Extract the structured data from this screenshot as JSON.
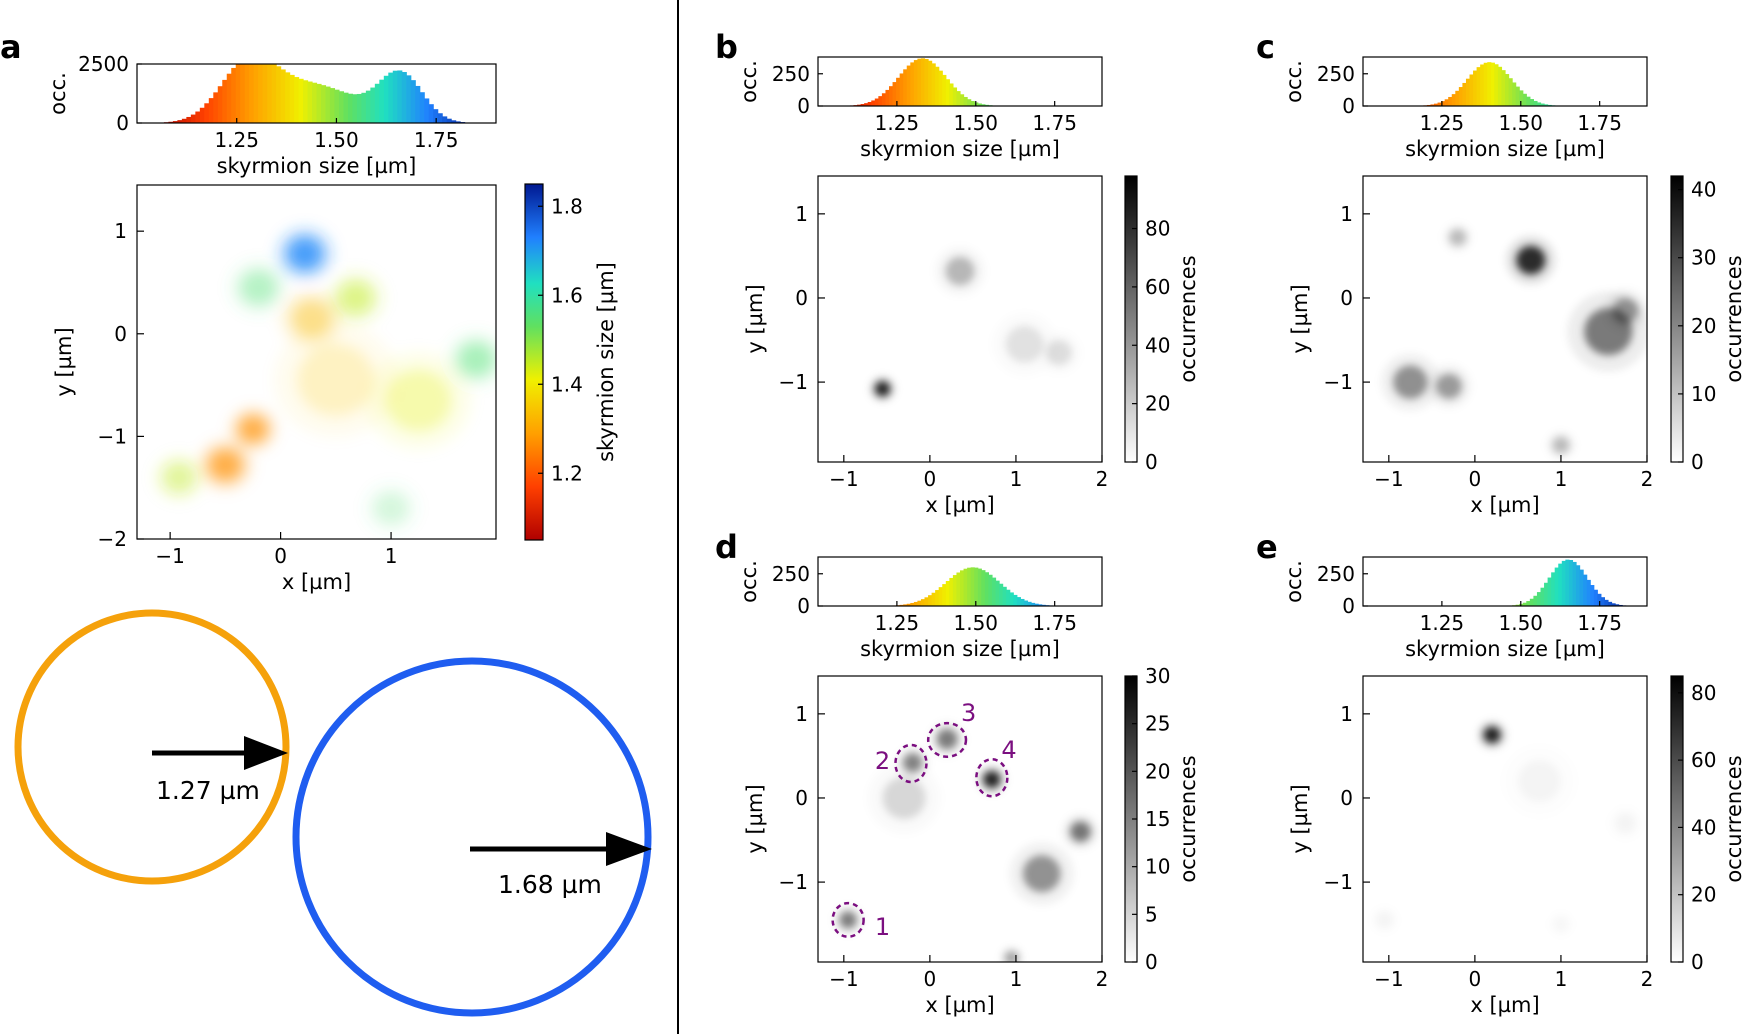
{
  "colors": {
    "orange_circle": "#f5a10b",
    "blue_circle": "#1f5df0",
    "arrow": "#000000",
    "annotation": "#7b0f80",
    "axis": "#000000"
  },
  "circles": {
    "small_label": "1.27 µm",
    "small_value_um": 1.27,
    "large_label": "1.68 µm",
    "large_value_um": 1.68
  },
  "chart_data": [
    {
      "panel": "a",
      "type": "heatmap",
      "mode": "color-coded scatter density",
      "xlabel": "x [µm]",
      "ylabel": "y [µm]",
      "xlim": [
        -1.3,
        1.95
      ],
      "ylim": [
        -2.0,
        1.45
      ],
      "xticks": [
        -1,
        0,
        1
      ],
      "yticks": [
        -2,
        -1,
        0,
        1
      ],
      "colorbar": {
        "label": "skyrmion size [µm]",
        "range": [
          1.05,
          1.85
        ],
        "ticks": [
          "1.2",
          "1.4",
          "1.6",
          "1.8"
        ],
        "tick_values": [
          1.2,
          1.4,
          1.6,
          1.8
        ],
        "colormap": "jet_r"
      },
      "clusters": [
        {
          "x": 0.22,
          "y": 0.78,
          "spread": 0.16,
          "size": 1.72,
          "weight": 1.0
        },
        {
          "x": 0.68,
          "y": 0.35,
          "spread": 0.16,
          "size": 1.45,
          "weight": 0.6
        },
        {
          "x": 0.28,
          "y": 0.15,
          "spread": 0.18,
          "size": 1.33,
          "weight": 0.5
        },
        {
          "x": -0.2,
          "y": 0.45,
          "spread": 0.16,
          "size": 1.55,
          "weight": 0.45
        },
        {
          "x": -0.25,
          "y": -0.93,
          "spread": 0.13,
          "size": 1.27,
          "weight": 0.85
        },
        {
          "x": -0.5,
          "y": -1.28,
          "spread": 0.15,
          "size": 1.27,
          "weight": 0.85
        },
        {
          "x": -0.92,
          "y": -1.4,
          "spread": 0.14,
          "size": 1.45,
          "weight": 0.5
        },
        {
          "x": 1.77,
          "y": -0.25,
          "spread": 0.16,
          "size": 1.55,
          "weight": 0.55
        },
        {
          "x": 1.25,
          "y": -0.65,
          "spread": 0.3,
          "size": 1.42,
          "weight": 0.35
        },
        {
          "x": 0.5,
          "y": -0.45,
          "spread": 0.35,
          "size": 1.35,
          "weight": 0.25
        },
        {
          "x": 1.0,
          "y": -1.7,
          "spread": 0.15,
          "size": 1.55,
          "weight": 0.25
        }
      ],
      "histogram": {
        "ylabel": "occ.",
        "xlabel": "skyrmion size [µm]",
        "xlim": [
          1.0,
          1.9
        ],
        "ylim": [
          0,
          2500
        ],
        "xticks": [
          "1.25",
          "1.50",
          "1.75"
        ],
        "xtick_values": [
          1.25,
          1.5,
          1.75
        ],
        "yticks": [
          "0",
          "2500"
        ],
        "ytick_values": [
          0,
          2500
        ],
        "peaks": [
          {
            "center": 1.28,
            "sigma": 0.07,
            "height": 2500
          },
          {
            "center": 1.45,
            "sigma": 0.1,
            "height": 1550
          },
          {
            "center": 1.66,
            "sigma": 0.055,
            "height": 2050
          }
        ]
      }
    },
    {
      "panel": "b",
      "type": "heatmap",
      "xlabel": "x [µm]",
      "ylabel": "y [µm]",
      "xlim": [
        -1.3,
        2.0
      ],
      "ylim": [
        -1.95,
        1.45
      ],
      "xticks": [
        -1,
        0,
        1,
        2
      ],
      "yticks": [
        -1,
        0,
        1
      ],
      "colorbar": {
        "label": "occurrences",
        "range": [
          0,
          98
        ],
        "ticks": [
          "0",
          "20",
          "40",
          "60",
          "80"
        ],
        "tick_values": [
          0,
          20,
          40,
          60,
          80
        ]
      },
      "clusters": [
        {
          "x": -0.55,
          "y": -1.08,
          "spread": 0.09,
          "peak": 98
        },
        {
          "x": 0.35,
          "y": 0.32,
          "spread": 0.17,
          "peak": 30
        },
        {
          "x": 1.1,
          "y": -0.55,
          "spread": 0.22,
          "peak": 12
        },
        {
          "x": 1.5,
          "y": -0.65,
          "spread": 0.15,
          "peak": 14
        }
      ],
      "histogram": {
        "ylabel": "occ.",
        "xlabel": "skyrmion size [µm]",
        "xlim": [
          1.0,
          1.9
        ],
        "ylim": [
          0,
          380
        ],
        "xticks": [
          "1.25",
          "1.50",
          "1.75"
        ],
        "xtick_values": [
          1.25,
          1.5,
          1.75
        ],
        "yticks": [
          "0",
          "250"
        ],
        "ytick_values": [
          0,
          250
        ],
        "peaks": [
          {
            "center": 1.33,
            "sigma": 0.075,
            "height": 370
          }
        ]
      }
    },
    {
      "panel": "c",
      "type": "heatmap",
      "xlabel": "x [µm]",
      "ylabel": "y [µm]",
      "xlim": [
        -1.3,
        2.0
      ],
      "ylim": [
        -1.95,
        1.45
      ],
      "xticks": [
        -1,
        0,
        1,
        2
      ],
      "yticks": [
        -1,
        0,
        1
      ],
      "colorbar": {
        "label": "occurrences",
        "range": [
          0,
          42
        ],
        "ticks": [
          "0",
          "10",
          "20",
          "30",
          "40"
        ],
        "tick_values": [
          0,
          10,
          20,
          30,
          40
        ]
      },
      "clusters": [
        {
          "x": 0.65,
          "y": 0.45,
          "spread": 0.17,
          "peak": 40
        },
        {
          "x": -0.2,
          "y": 0.72,
          "spread": 0.1,
          "peak": 12
        },
        {
          "x": 1.55,
          "y": -0.4,
          "spread": 0.28,
          "peak": 24
        },
        {
          "x": 1.75,
          "y": -0.15,
          "spread": 0.15,
          "peak": 18
        },
        {
          "x": -0.75,
          "y": -1.0,
          "spread": 0.2,
          "peak": 20
        },
        {
          "x": -0.3,
          "y": -1.05,
          "spread": 0.15,
          "peak": 18
        },
        {
          "x": 1.0,
          "y": -1.75,
          "spread": 0.1,
          "peak": 12
        }
      ],
      "histogram": {
        "ylabel": "occ.",
        "xlabel": "skyrmion size [µm]",
        "xlim": [
          1.0,
          1.9
        ],
        "ylim": [
          0,
          380
        ],
        "xticks": [
          "1.25",
          "1.50",
          "1.75"
        ],
        "xtick_values": [
          1.25,
          1.5,
          1.75
        ],
        "yticks": [
          "0",
          "250"
        ],
        "ytick_values": [
          0,
          250
        ],
        "peaks": [
          {
            "center": 1.4,
            "sigma": 0.07,
            "height": 340
          }
        ]
      }
    },
    {
      "panel": "d",
      "type": "heatmap",
      "xlabel": "x [µm]",
      "ylabel": "y [µm]",
      "xlim": [
        -1.3,
        2.0
      ],
      "ylim": [
        -1.95,
        1.45
      ],
      "xticks": [
        -1,
        0,
        1,
        2
      ],
      "yticks": [
        -1,
        0,
        1
      ],
      "colorbar": {
        "label": "occurrences",
        "range": [
          0,
          30
        ],
        "ticks": [
          "0",
          "5",
          "10",
          "15",
          "20",
          "25",
          "30"
        ],
        "tick_values": [
          0,
          5,
          10,
          15,
          20,
          25,
          30
        ]
      },
      "clusters": [
        {
          "x": -0.95,
          "y": -1.45,
          "spread": 0.1,
          "peak": 17
        },
        {
          "x": -0.2,
          "y": 0.42,
          "spread": 0.11,
          "peak": 16
        },
        {
          "x": 0.2,
          "y": 0.7,
          "spread": 0.12,
          "peak": 17
        },
        {
          "x": 0.72,
          "y": 0.22,
          "spread": 0.1,
          "peak": 30
        },
        {
          "x": 1.3,
          "y": -0.9,
          "spread": 0.22,
          "peak": 14
        },
        {
          "x": 1.75,
          "y": -0.4,
          "spread": 0.12,
          "peak": 18
        },
        {
          "x": 0.95,
          "y": -1.9,
          "spread": 0.08,
          "peak": 12
        },
        {
          "x": -0.3,
          "y": 0.0,
          "spread": 0.25,
          "peak": 5
        }
      ],
      "annotations": [
        {
          "label": "1",
          "x": -0.95,
          "y": -1.45,
          "rx": 0.18,
          "ry": 0.2,
          "tx": -0.55,
          "ty": -1.52
        },
        {
          "label": "2",
          "x": -0.22,
          "y": 0.41,
          "rx": 0.18,
          "ry": 0.22,
          "tx": -0.55,
          "ty": 0.45
        },
        {
          "label": "3",
          "x": 0.2,
          "y": 0.69,
          "rx": 0.22,
          "ry": 0.2,
          "tx": 0.45,
          "ty": 1.02
        },
        {
          "label": "4",
          "x": 0.72,
          "y": 0.24,
          "rx": 0.18,
          "ry": 0.22,
          "tx": 0.92,
          "ty": 0.58
        }
      ],
      "histogram": {
        "ylabel": "occ.",
        "xlabel": "skyrmion size [µm]",
        "xlim": [
          1.0,
          1.9
        ],
        "ylim": [
          0,
          380
        ],
        "xticks": [
          "1.25",
          "1.50",
          "1.75"
        ],
        "xtick_values": [
          1.25,
          1.5,
          1.75
        ],
        "yticks": [
          "0",
          "250"
        ],
        "ytick_values": [
          0,
          250
        ],
        "peaks": [
          {
            "center": 1.49,
            "sigma": 0.085,
            "height": 300
          }
        ]
      }
    },
    {
      "panel": "e",
      "type": "heatmap",
      "xlabel": "x [µm]",
      "ylabel": "y [µm]",
      "xlim": [
        -1.3,
        2.0
      ],
      "ylim": [
        -1.95,
        1.45
      ],
      "xticks": [
        -1,
        0,
        1,
        2
      ],
      "yticks": [
        -1,
        0,
        1
      ],
      "colorbar": {
        "label": "occurrences",
        "range": [
          0,
          85
        ],
        "ticks": [
          "0",
          "20",
          "40",
          "60",
          "80"
        ],
        "tick_values": [
          0,
          20,
          40,
          60,
          80
        ]
      },
      "clusters": [
        {
          "x": 0.2,
          "y": 0.75,
          "spread": 0.1,
          "peak": 85
        },
        {
          "x": 0.75,
          "y": 0.2,
          "spread": 0.25,
          "peak": 4
        },
        {
          "x": 1.75,
          "y": -0.3,
          "spread": 0.12,
          "peak": 4
        },
        {
          "x": -1.05,
          "y": -1.45,
          "spread": 0.1,
          "peak": 4
        },
        {
          "x": 1.0,
          "y": -1.5,
          "spread": 0.1,
          "peak": 3
        }
      ],
      "histogram": {
        "ylabel": "occ.",
        "xlabel": "skyrmion size [µm]",
        "xlim": [
          1.0,
          1.9
        ],
        "ylim": [
          0,
          380
        ],
        "xticks": [
          "1.25",
          "1.50",
          "1.75"
        ],
        "xtick_values": [
          1.25,
          1.5,
          1.75
        ],
        "yticks": [
          "0",
          "250"
        ],
        "ytick_values": [
          0,
          250
        ],
        "peaks": [
          {
            "center": 1.65,
            "sigma": 0.06,
            "height": 360
          }
        ]
      }
    }
  ]
}
